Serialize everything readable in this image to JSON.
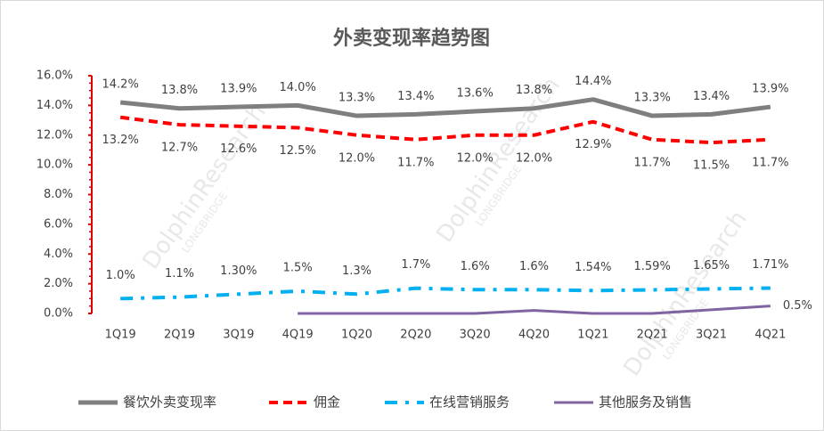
{
  "chart_data": {
    "type": "line",
    "title": "外卖变现率趋势图",
    "watermark": [
      "DolphinResearch",
      "LONGBRIDGE"
    ],
    "categories": [
      "1Q19",
      "2Q19",
      "3Q19",
      "4Q19",
      "1Q20",
      "2Q20",
      "3Q20",
      "4Q20",
      "1Q21",
      "2Q21",
      "3Q21",
      "4Q21"
    ],
    "ylim": [
      0,
      16
    ],
    "yticks": [
      {
        "value": 0,
        "label": "0.0%"
      },
      {
        "value": 2,
        "label": "2.0%"
      },
      {
        "value": 4,
        "label": "4.0%"
      },
      {
        "value": 6,
        "label": "6.0%"
      },
      {
        "value": 8,
        "label": "8.0%"
      },
      {
        "value": 10,
        "label": "10.0%"
      },
      {
        "value": 12,
        "label": "12.0%"
      },
      {
        "value": 14,
        "label": "14.0%"
      },
      {
        "value": 16,
        "label": "16.0%"
      }
    ],
    "axis_color": "#e00000",
    "legend": "bottom",
    "series": [
      {
        "name": "餐饮外卖变现率",
        "color": "#7f7f7f",
        "style": "solid",
        "values": [
          14.2,
          13.8,
          13.9,
          14.0,
          13.3,
          13.4,
          13.6,
          13.8,
          14.4,
          13.3,
          13.4,
          13.9
        ],
        "value_labels": [
          "14.2%",
          "13.8%",
          "13.9%",
          "14.0%",
          "13.3%",
          "13.4%",
          "13.6%",
          "13.8%",
          "14.4%",
          "13.3%",
          "13.4%",
          "13.9%"
        ]
      },
      {
        "name": "佣金",
        "color": "#ff0000",
        "style": "dash",
        "values": [
          13.2,
          12.7,
          12.6,
          12.5,
          12.0,
          11.7,
          12.0,
          12.0,
          12.9,
          11.7,
          11.5,
          11.7
        ],
        "value_labels": [
          "13.2%",
          "12.7%",
          "12.6%",
          "12.5%",
          "12.0%",
          "11.7%",
          "12.0%",
          "12.0%",
          "12.9%",
          "11.7%",
          "11.5%",
          "11.7%"
        ]
      },
      {
        "name": "在线营销服务",
        "color": "#00b0f0",
        "style": "dashdot",
        "values": [
          1.0,
          1.1,
          1.3,
          1.5,
          1.3,
          1.7,
          1.6,
          1.6,
          1.54,
          1.59,
          1.65,
          1.71
        ],
        "value_labels": [
          "1.0%",
          "1.1%",
          "1.30%",
          "1.5%",
          "1.3%",
          "1.7%",
          "1.6%",
          "1.6%",
          "1.54%",
          "1.59%",
          "1.65%",
          "1.71%"
        ]
      },
      {
        "name": "其他服务及销售",
        "color": "#8064a2",
        "style": "solid",
        "values": [
          null,
          null,
          null,
          0.0,
          0.0,
          0.0,
          0.0,
          0.2,
          0.0,
          0.0,
          0.25,
          0.5
        ],
        "value_labels": [
          null,
          null,
          null,
          null,
          null,
          null,
          null,
          null,
          null,
          null,
          null,
          "0.5%"
        ]
      }
    ]
  }
}
